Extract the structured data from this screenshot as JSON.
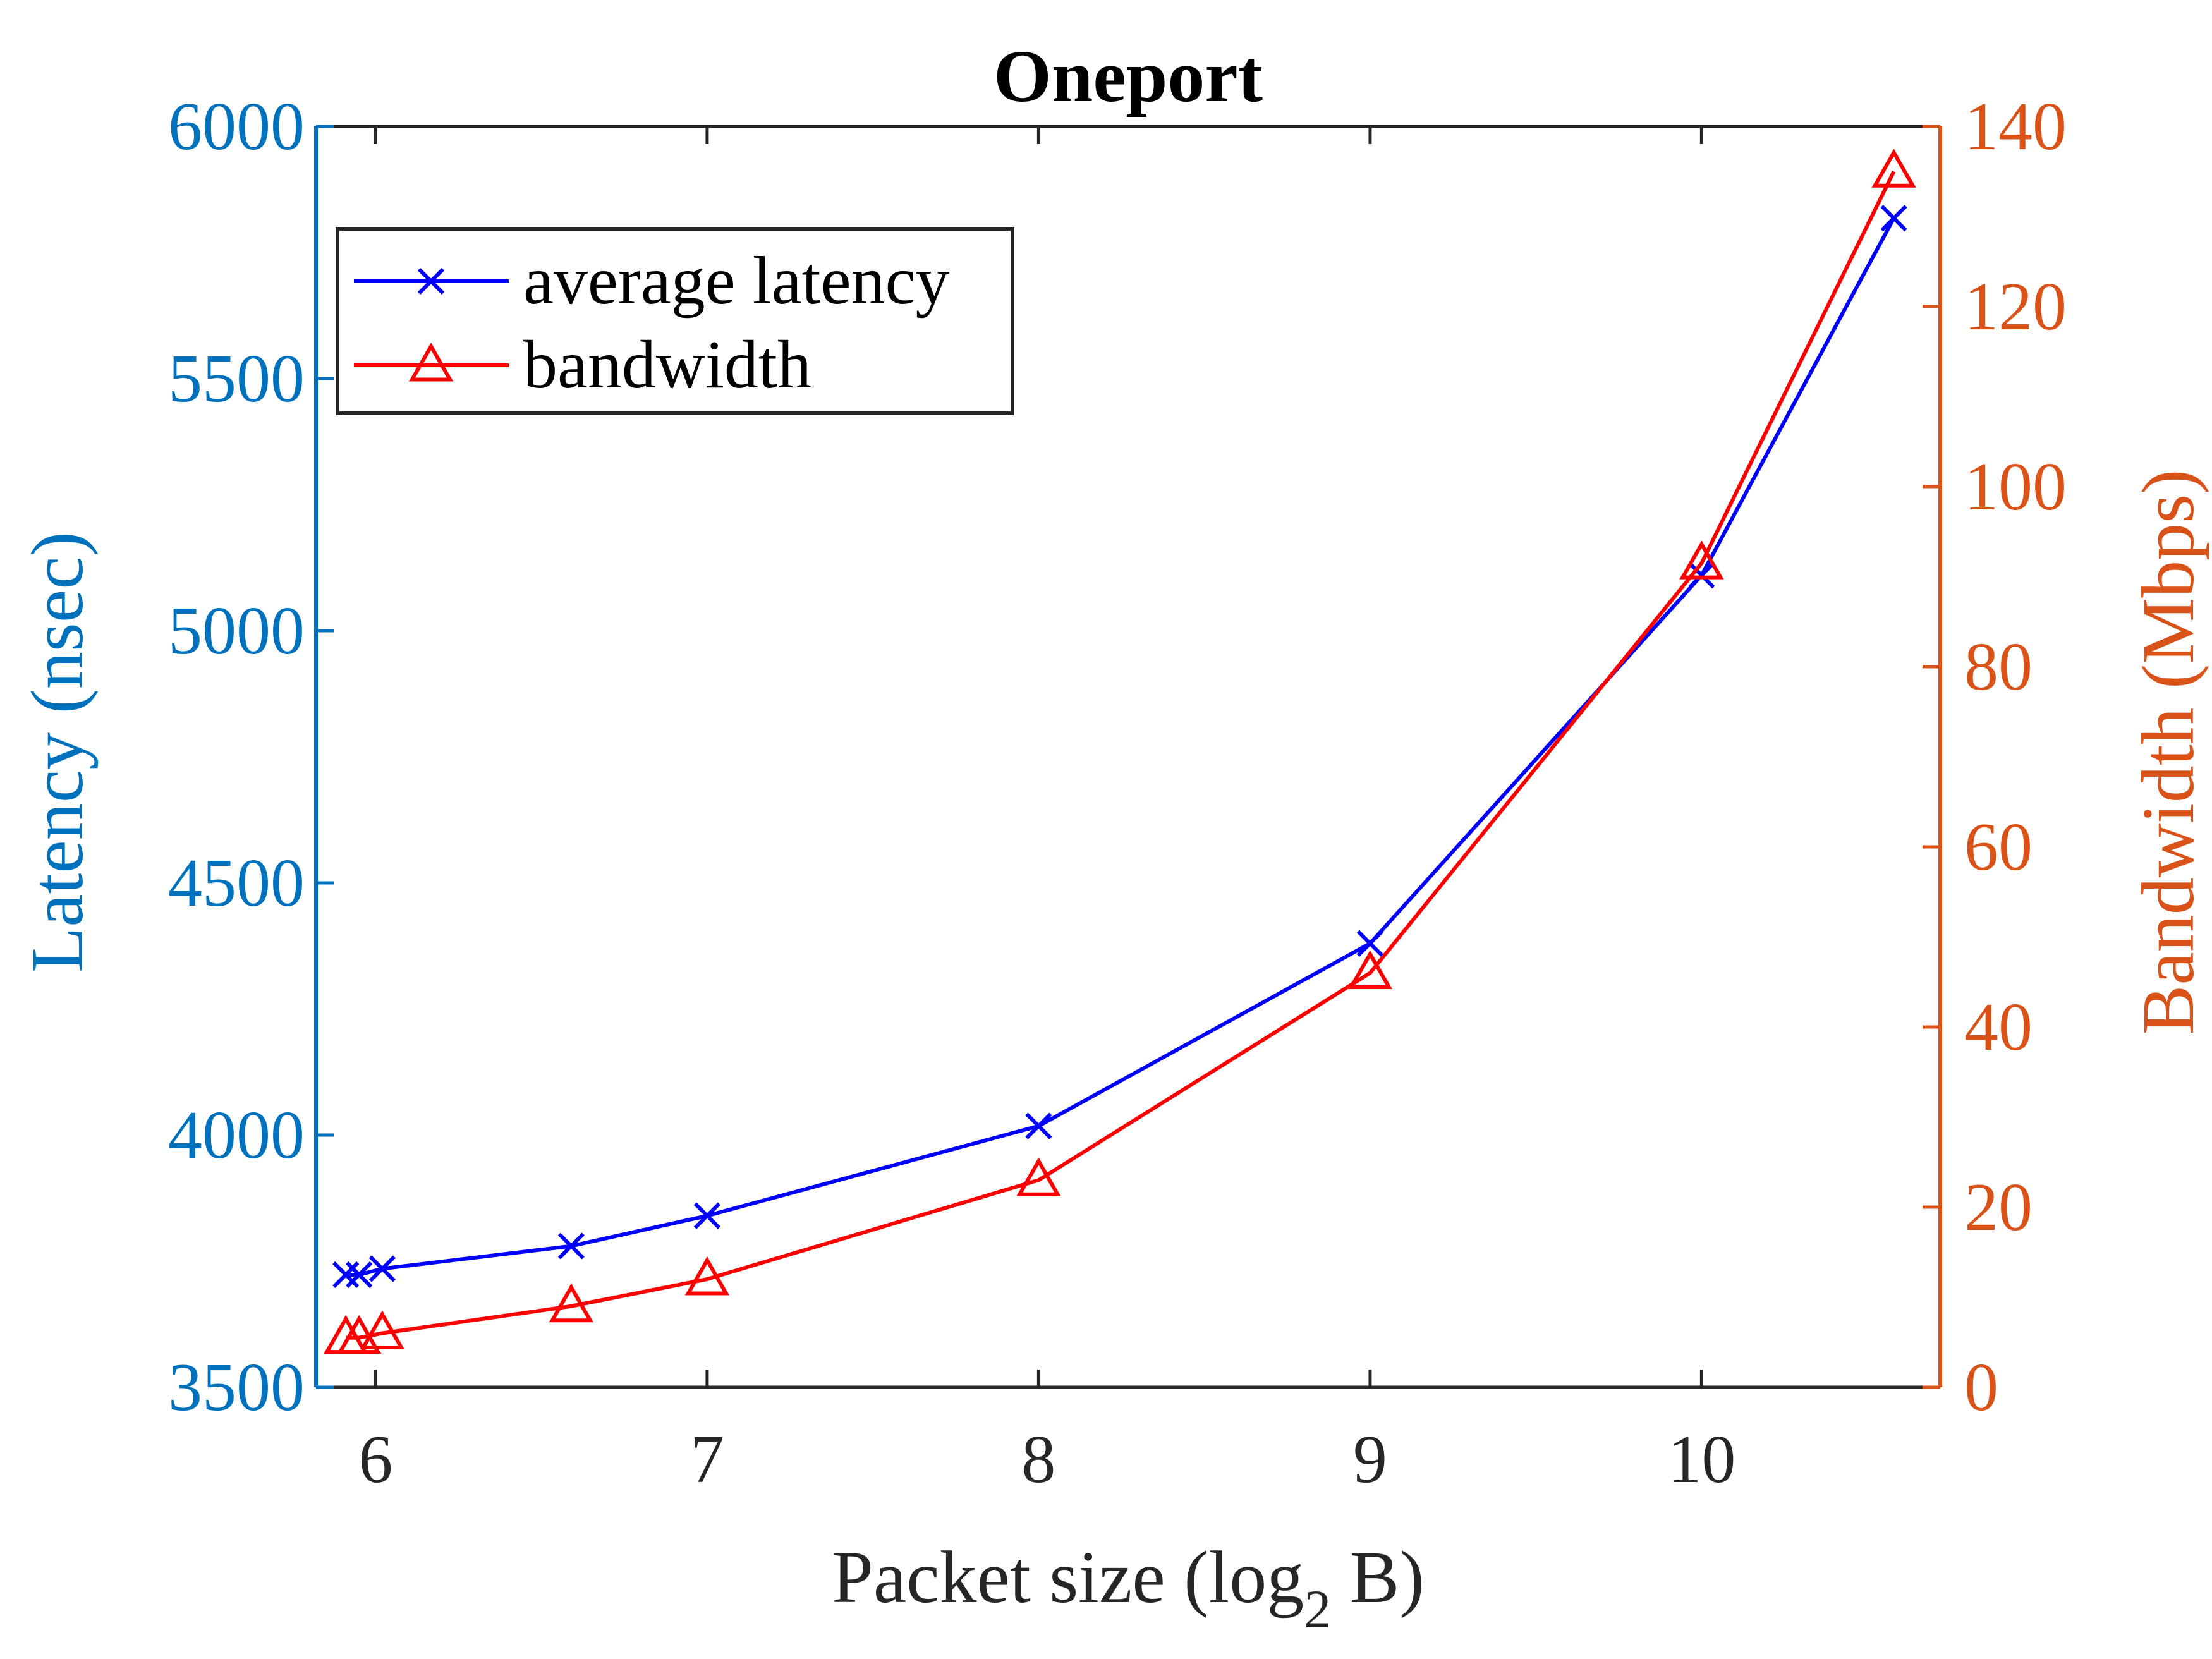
{
  "chart_data": {
    "type": "line",
    "title": "Oneport",
    "xlabel": {
      "main": "Packet size (log",
      "sub": "2",
      "tail": " B)"
    },
    "ylabel_left": "Latency (nsec)",
    "ylabel_right": "Bandwidth (Mbps)",
    "xlim": [
      5.82,
      10.72
    ],
    "ylim_left": [
      3500,
      6000
    ],
    "ylim_right": [
      0,
      140
    ],
    "xticks": [
      6,
      7,
      8,
      9,
      10
    ],
    "yticks_left": [
      3500,
      4000,
      4500,
      5000,
      5500,
      6000
    ],
    "yticks_right": [
      0,
      20,
      40,
      60,
      80,
      100,
      120,
      140
    ],
    "grid": false,
    "legend_position": "top-left",
    "colors": {
      "left_axis": "#0072BD",
      "right_axis": "#D95319",
      "latency_line": "#0000FF",
      "bandwidth_line": "#FF0000",
      "box_axis": "#262626"
    },
    "series": [
      {
        "name": "average latency",
        "axis": "left",
        "marker": "x",
        "x": [
          5.91,
          5.95,
          6.02,
          6.59,
          7.0,
          8.0,
          9.0,
          10.0,
          10.58
        ],
        "y": [
          3723,
          3723,
          3735,
          3780,
          3840,
          4018,
          4380,
          5110,
          5818
        ]
      },
      {
        "name": "bandwidth",
        "axis": "right",
        "marker": "triangle",
        "x": [
          5.91,
          5.95,
          6.02,
          6.59,
          7.0,
          8.0,
          9.0,
          10.0,
          10.58
        ],
        "y": [
          5.5,
          5.5,
          6.0,
          9.0,
          12.0,
          23.0,
          46.0,
          91.5,
          135.0
        ]
      }
    ]
  }
}
